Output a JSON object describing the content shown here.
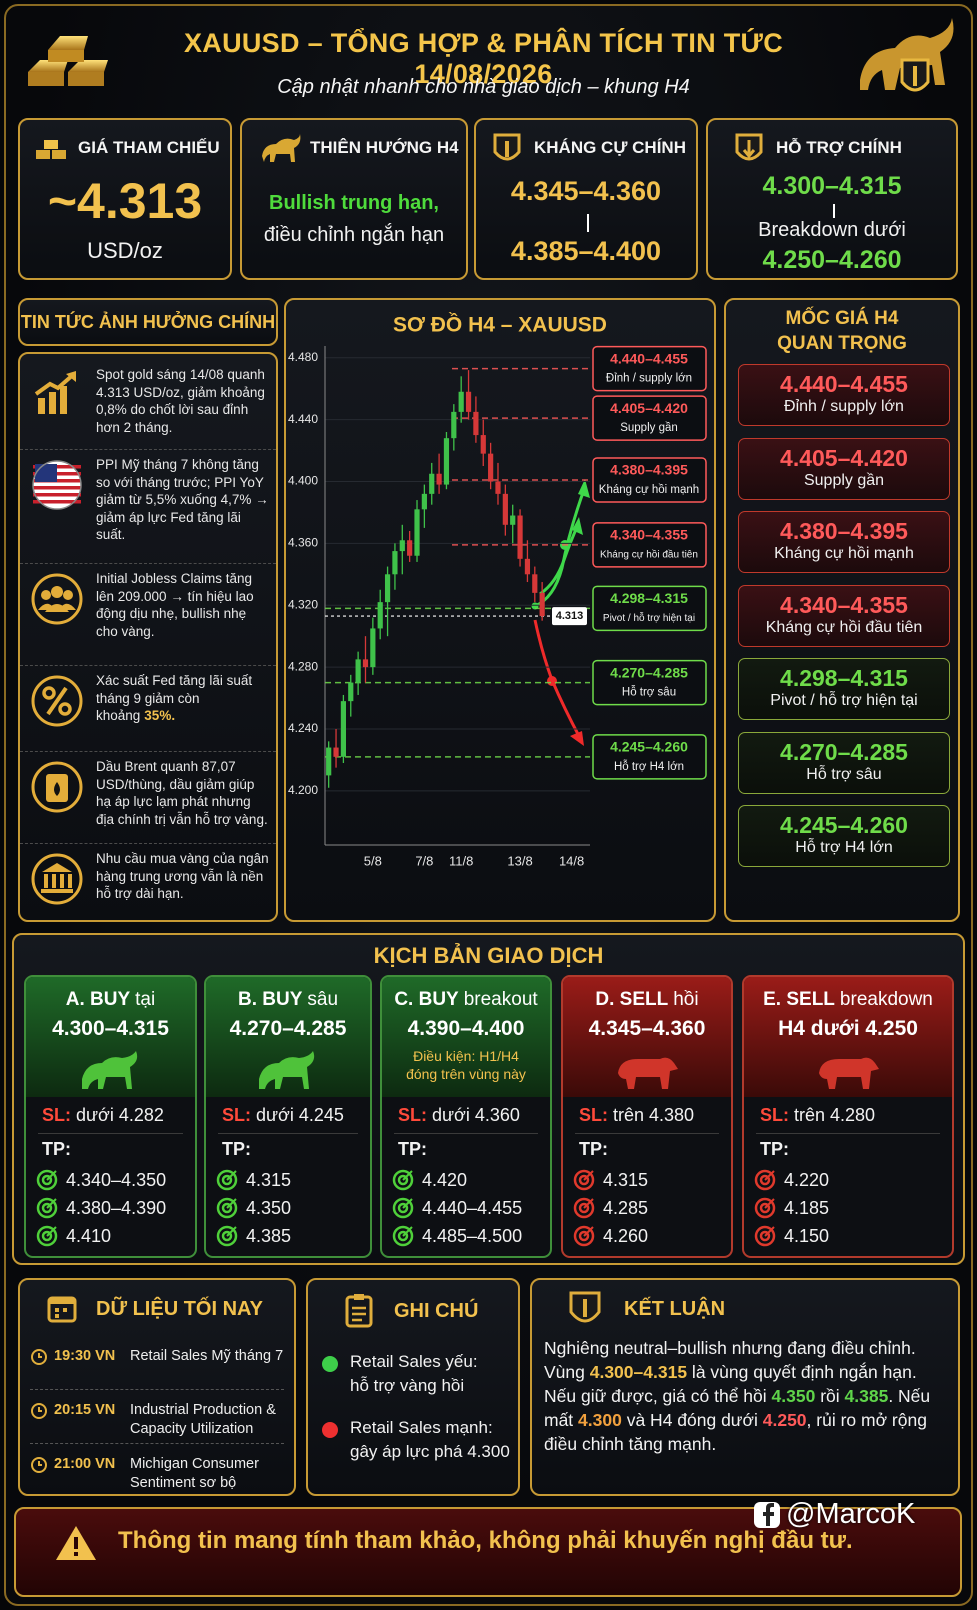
{
  "header": {
    "title": "XAUUSD – TỔNG HỢP & PHÂN TÍCH TIN TỨC 14/08/2026",
    "subtitle": "Cập nhật nhanh cho nhà giao dịch – khung H4"
  },
  "summary": [
    {
      "title": "GIÁ THAM CHIẾU",
      "lines": [
        "~4.313",
        "USD/oz"
      ]
    },
    {
      "title": "THIÊN HƯỚNG H4",
      "lines": [
        "Bullish trung hạn,",
        "điều chỉnh ngắn hạn"
      ]
    },
    {
      "title": "KHÁNG CỰ CHÍNH",
      "lines": [
        "4.345–4.360",
        "4.385–4.400"
      ]
    },
    {
      "title": "HỖ TRỢ CHÍNH",
      "lines": [
        "4.300–4.315",
        "Breakdown dưới",
        "4.250–4.260"
      ]
    }
  ],
  "news": {
    "title": "TIN TỨC ẢNH HƯỞNG CHÍNH",
    "items": [
      {
        "text": "Spot gold sáng 14/08 quanh 4.313 USD/oz, giảm khoảng 0,8% do chốt lời sau đỉnh hơn 2 tháng."
      },
      {
        "text": "PPI Mỹ tháng 7 không tăng so với tháng trước; PPI YoY giảm từ 5,5% xuống 4,7% → giảm áp lực Fed tăng lãi suất."
      },
      {
        "text": "Initial Jobless Claims tăng lên 209.000 → tín hiệu lao động dịu nhẹ, bullish nhẹ cho vàng."
      },
      {
        "text": "Xác suất Fed tăng lãi suất tháng 9 giảm còn khoảng",
        "highlight": "35%."
      },
      {
        "text": "Dầu Brent quanh 87,07 USD/thùng, dầu giảm giúp hạ áp lực lạm phát nhưng địa chính trị vẫn hỗ trợ vàng."
      },
      {
        "text": "Nhu cầu mua vàng của ngân hàng trung ương vẫn là nền hỗ trợ dài hạn."
      }
    ]
  },
  "chart_data": {
    "type": "candlestick",
    "title": "SƠ ĐỒ H4 – XAUUSD",
    "categories": [
      null,
      null,
      null,
      null,
      null,
      null,
      "5/8",
      null,
      null,
      null,
      null,
      null,
      null,
      "7/8",
      null,
      null,
      null,
      null,
      "11/8",
      null,
      null,
      null,
      null,
      null,
      null,
      null,
      "13/8",
      null,
      null,
      null,
      null,
      null,
      null,
      "14/8",
      null,
      null
    ],
    "open": [
      4.21,
      4.228,
      4.222,
      4.258,
      4.27,
      4.285,
      4.28,
      4.305,
      4.322,
      4.34,
      4.355,
      4.362,
      4.352,
      4.382,
      4.392,
      4.405,
      4.398,
      4.428,
      4.445,
      4.458,
      4.445,
      4.43,
      4.418,
      4.4,
      4.392,
      4.372,
      4.378,
      4.35,
      4.34,
      4.328,
      null,
      null,
      null,
      null,
      null,
      null
    ],
    "high": [
      4.232,
      4.24,
      4.262,
      4.275,
      4.29,
      4.3,
      4.312,
      4.33,
      4.345,
      4.36,
      4.372,
      4.368,
      4.388,
      4.398,
      4.412,
      4.418,
      4.432,
      4.45,
      4.468,
      4.472,
      4.455,
      4.44,
      4.425,
      4.412,
      4.398,
      4.385,
      4.382,
      4.362,
      4.345,
      4.335,
      null,
      null,
      null,
      null,
      null,
      null
    ],
    "low": [
      4.202,
      4.215,
      4.218,
      4.248,
      4.262,
      4.27,
      4.275,
      4.298,
      4.3,
      4.33,
      4.34,
      4.348,
      4.348,
      4.37,
      4.385,
      4.392,
      4.395,
      4.42,
      4.438,
      4.44,
      4.425,
      4.41,
      4.395,
      4.385,
      4.365,
      4.36,
      4.345,
      4.335,
      4.322,
      4.31,
      null,
      null,
      null,
      null,
      null,
      null
    ],
    "close": [
      4.228,
      4.222,
      4.258,
      4.27,
      4.285,
      4.28,
      4.305,
      4.322,
      4.34,
      4.355,
      4.362,
      4.352,
      4.382,
      4.392,
      4.405,
      4.398,
      4.428,
      4.445,
      4.458,
      4.445,
      4.43,
      4.418,
      4.4,
      4.392,
      4.372,
      4.378,
      4.35,
      4.34,
      4.328,
      4.313,
      null,
      null,
      null,
      null,
      null,
      null
    ],
    "up_color": "#3fc24a",
    "down_color": "#d63838",
    "ylim": [
      4.165,
      4.485
    ],
    "yticks": [
      {
        "value": 4.2,
        "label": "4.200"
      },
      {
        "value": 4.24,
        "label": "4.240"
      },
      {
        "value": 4.28,
        "label": "4.280"
      },
      {
        "value": 4.32,
        "label": "4.320"
      },
      {
        "value": 4.36,
        "label": "4.360"
      },
      {
        "value": 4.4,
        "label": "4.400"
      },
      {
        "value": 4.44,
        "label": "4.440"
      },
      {
        "value": 4.48,
        "label": "4.480"
      }
    ],
    "grid": true,
    "current_price": 4.313,
    "annotations": [
      {
        "value": 4.473,
        "label": "4.440–4.455",
        "note": "Đỉnh / supply lớn",
        "color": "#ff5a5a"
      },
      {
        "value": 4.441,
        "label": "4.405–4.420",
        "note": "Supply gần",
        "color": "#ff5a5a"
      },
      {
        "value": 4.401,
        "label": "4.380–4.395",
        "note": "Kháng cự hồi mạnh",
        "color": "#ff5a5a"
      },
      {
        "value": 4.359,
        "label": "4.340–4.355",
        "note": "Kháng cự hồi đầu tiên",
        "color": "#ff5a5a"
      },
      {
        "value": 4.318,
        "label": "4.298–4.315",
        "note": "Pivot / hỗ trợ hiện tại",
        "color": "#6fdc4a"
      },
      {
        "value": 4.27,
        "label": "4.270–4.285",
        "note": "Hỗ trợ sâu",
        "color": "#6fdc4a"
      },
      {
        "value": 4.222,
        "label": "4.245–4.260",
        "note": "Hỗ trợ H4 lớn",
        "color": "#6fdc4a"
      }
    ]
  },
  "levels_title": "MỐC GIÁ H4 QUAN TRỌNG",
  "scenarios": {
    "title": "KỊCH BẢN GIAO DỊCH",
    "sl_label": "SL:",
    "tp_label": "TP:",
    "items": [
      {
        "name": "A. BUY",
        "qualifier": "tại",
        "zone": "4.300–4.315",
        "sl": "dưới 4.282",
        "tp": [
          "4.340–4.350",
          "4.380–4.390",
          "4.410"
        ],
        "tone": "buy"
      },
      {
        "name": "B. BUY",
        "qualifier": "sâu",
        "zone": "4.270–4.285",
        "sl": "dưới 4.245",
        "tp": [
          "4.315",
          "4.350",
          "4.385"
        ],
        "tone": "buy"
      },
      {
        "name": "C. BUY",
        "qualifier": "breakout",
        "zone": "4.390–4.400",
        "condition": "Điều kiện: H1/H4 đóng trên vùng này",
        "sl": "dưới 4.360",
        "tp": [
          "4.420",
          "4.440–4.455",
          "4.485–4.500"
        ],
        "tone": "buy"
      },
      {
        "name": "D. SELL",
        "qualifier": "hồi",
        "zone": "4.345–4.360",
        "sl": "trên 4.380",
        "tp": [
          "4.315",
          "4.285",
          "4.260"
        ],
        "tone": "sell"
      },
      {
        "name": "E. SELL",
        "qualifier": "breakdown",
        "zone": "H4 dưới 4.250",
        "sl": "trên 4.280",
        "tp": [
          "4.220",
          "4.185",
          "4.150"
        ],
        "tone": "sell"
      }
    ]
  },
  "tonight": {
    "title": "DỮ LIỆU TỐI NAY",
    "events": [
      {
        "time": "19:30 VN",
        "event": "Retail Sales Mỹ tháng 7"
      },
      {
        "time": "20:15 VN",
        "event": "Industrial Production & Capacity Utilization"
      },
      {
        "time": "21:00 VN",
        "event": "Michigan Consumer Sentiment sơ bộ"
      }
    ]
  },
  "notes": {
    "title": "GHI CHÚ",
    "items": [
      {
        "label": "Retail Sales yếu:",
        "text": "hỗ trợ vàng hồi",
        "color": "#3ecf4a"
      },
      {
        "label": "Retail Sales mạnh:",
        "text": "gây áp lực phá 4.300",
        "color": "#ee3030"
      }
    ]
  },
  "conclusion": {
    "title": "KẾT LUẬN",
    "segments": [
      {
        "text": "Nghiêng neutral–bullish nhưng đang điều chỉnh. Vùng "
      },
      {
        "text": "4.300–4.315",
        "color": "#f2c14e"
      },
      {
        "text": " là vùng quyết định ngắn hạn. Nếu giữ được, giá có thể hồi "
      },
      {
        "text": "4.350",
        "color": "#5fd44a"
      },
      {
        "text": " rồi "
      },
      {
        "text": "4.385",
        "color": "#5fd44a"
      },
      {
        "text": ". Nếu mất "
      },
      {
        "text": "4.300",
        "color": "#f2a13e"
      },
      {
        "text": " và H4 đóng dưới "
      },
      {
        "text": "4.250",
        "color": "#ff5a5a"
      },
      {
        "text": ", rủi ro mở rộng điều chỉnh tăng mạnh."
      }
    ]
  },
  "footer": {
    "disclaimer": "Thông tin mang tính tham khảo, không phải khuyến nghị đầu tư.",
    "watermark": "@MarcoK"
  }
}
